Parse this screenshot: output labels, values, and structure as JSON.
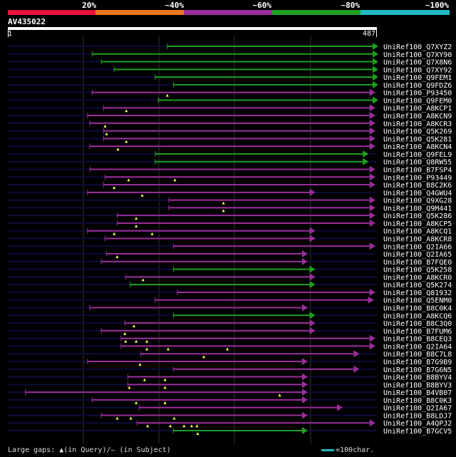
{
  "legend": {
    "labels": [
      "20%",
      "~40%",
      "~60%",
      "~80%",
      "~100%"
    ],
    "colors": [
      "#e8143c",
      "#e87820",
      "#9b2d9b",
      "#1ea01e",
      "#22b8c4"
    ]
  },
  "query": {
    "id": "AV435022",
    "start": "1",
    "end": "487",
    "length": 487
  },
  "footer": {
    "gaps_text": "Large gaps: ▲(in Query)/– (in Subject)",
    "scale_text": "=100char."
  },
  "colors": {
    "green": "#1ea01e",
    "purple": "#9b2d9b",
    "dark_line": "#0c0c3c",
    "guide": "#333333",
    "marker": "#ffff66"
  },
  "hits": [
    {
      "label": "UniRef100_Q7XYZ2",
      "start": 211,
      "end": 487,
      "color": "green",
      "markers": []
    },
    {
      "label": "UniRef100_Q7XY90",
      "start": 112,
      "end": 487,
      "color": "green",
      "markers": []
    },
    {
      "label": "UniRef100_Q7X8N6",
      "start": 124,
      "end": 487,
      "color": "green",
      "markers": []
    },
    {
      "label": "UniRef100_Q7XY92",
      "start": 141,
      "end": 487,
      "color": "green",
      "markers": []
    },
    {
      "label": "UniRef100_Q9FEM1",
      "start": 195,
      "end": 487,
      "color": "green",
      "markers": []
    },
    {
      "label": "UniRef100_Q9FDZ6",
      "start": 219,
      "end": 487,
      "color": "green",
      "markers": []
    },
    {
      "label": "UniRef100_P93450",
      "start": 112,
      "end": 483,
      "color": "purple",
      "markers": [
        211
      ]
    },
    {
      "label": "UniRef100_Q9FEM0",
      "start": 199,
      "end": 487,
      "color": "green",
      "markers": []
    },
    {
      "label": "UniRef100_A8KCP1",
      "start": 127,
      "end": 483,
      "color": "purple",
      "markers": [
        157
      ]
    },
    {
      "label": "UniRef100_A8KCN9",
      "start": 106,
      "end": 483,
      "color": "purple",
      "markers": []
    },
    {
      "label": "UniRef100_A8KCR3",
      "start": 109,
      "end": 483,
      "color": "purple",
      "markers": [
        129
      ]
    },
    {
      "label": "UniRef100_Q5K269",
      "start": 127,
      "end": 483,
      "color": "purple",
      "markers": [
        131
      ]
    },
    {
      "label": "UniRef100_Q5K281",
      "start": 127,
      "end": 483,
      "color": "purple",
      "markers": [
        157
      ]
    },
    {
      "label": "UniRef100_A8KCN4",
      "start": 109,
      "end": 483,
      "color": "purple",
      "markers": [
        146
      ]
    },
    {
      "label": "UniRef100_Q9FEL9",
      "start": 195,
      "end": 474,
      "color": "green",
      "markers": []
    },
    {
      "label": "UniRef100_Q8RW55",
      "start": 195,
      "end": 474,
      "color": "green",
      "markers": []
    },
    {
      "label": "UniRef100_B7FSP4",
      "start": 109,
      "end": 483,
      "color": "purple",
      "markers": []
    },
    {
      "label": "UniRef100_P93449",
      "start": 129,
      "end": 483,
      "color": "purple",
      "markers": [
        160,
        221
      ]
    },
    {
      "label": "UniRef100_B8C2K6",
      "start": 127,
      "end": 483,
      "color": "purple",
      "markers": [
        141
      ]
    },
    {
      "label": "UniRef100_Q4GWU4",
      "start": 106,
      "end": 404,
      "color": "purple",
      "markers": [
        178
      ]
    },
    {
      "label": "UniRef100_Q9XG28",
      "start": 213,
      "end": 483,
      "color": "purple",
      "markers": [
        285
      ]
    },
    {
      "label": "UniRef100_Q9M441",
      "start": 213,
      "end": 483,
      "color": "purple",
      "markers": [
        285
      ]
    },
    {
      "label": "UniRef100_Q5K286",
      "start": 145,
      "end": 483,
      "color": "purple",
      "markers": [
        170
      ]
    },
    {
      "label": "UniRef100_A8KCP5",
      "start": 145,
      "end": 483,
      "color": "purple",
      "markers": [
        170
      ]
    },
    {
      "label": "UniRef100_A8KCQ1",
      "start": 106,
      "end": 404,
      "color": "purple",
      "markers": [
        141,
        191
      ]
    },
    {
      "label": "UniRef100_A8KCR8",
      "start": 129,
      "end": 404,
      "color": "purple",
      "markers": []
    },
    {
      "label": "UniRef100_Q2IA66",
      "start": 219,
      "end": 483,
      "color": "purple",
      "markers": []
    },
    {
      "label": "UniRef100_Q2IA65",
      "start": 131,
      "end": 394,
      "color": "purple",
      "markers": [
        145
      ]
    },
    {
      "label": "UniRef100_B7FQE0",
      "start": 124,
      "end": 394,
      "color": "purple",
      "markers": []
    },
    {
      "label": "UniRef100_Q5K258",
      "start": 219,
      "end": 404,
      "color": "green",
      "markers": []
    },
    {
      "label": "UniRef100_A8KCR0",
      "start": 156,
      "end": 404,
      "color": "purple",
      "markers": [
        179
      ]
    },
    {
      "label": "UniRef100_Q5K274",
      "start": 162,
      "end": 404,
      "color": "green",
      "markers": []
    },
    {
      "label": "UniRef100_Q81932",
      "start": 224,
      "end": 483,
      "color": "purple",
      "markers": []
    },
    {
      "label": "UniRef100_Q5ENM0",
      "start": 195,
      "end": 481,
      "color": "purple",
      "markers": []
    },
    {
      "label": "UniRef100_B8C0K4",
      "start": 109,
      "end": 394,
      "color": "purple",
      "markers": []
    },
    {
      "label": "UniRef100_A8KCQ6",
      "start": 219,
      "end": 404,
      "color": "green",
      "markers": []
    },
    {
      "label": "UniRef100_B8C3Q0",
      "start": 155,
      "end": 404,
      "color": "purple",
      "markers": [
        167
      ]
    },
    {
      "label": "UniRef100_B7FUM6",
      "start": 124,
      "end": 404,
      "color": "purple",
      "markers": [
        155
      ]
    },
    {
      "label": "UniRef100_B8CEQ3",
      "start": 150,
      "end": 483,
      "color": "purple",
      "markers": [
        156,
        170,
        184
      ]
    },
    {
      "label": "UniRef100_Q2IA64",
      "start": 150,
      "end": 483,
      "color": "purple",
      "markers": [
        184,
        212,
        290
      ]
    },
    {
      "label": "UniRef100_B8C7L8",
      "start": 176,
      "end": 462,
      "color": "purple",
      "markers": [
        259
      ]
    },
    {
      "label": "UniRef100_B7G9B9",
      "start": 106,
      "end": 394,
      "color": "purple",
      "markers": [
        175
      ]
    },
    {
      "label": "UniRef100_B7G6N5",
      "start": 219,
      "end": 462,
      "color": "purple",
      "markers": []
    },
    {
      "label": "UniRef100_B8BYV4",
      "start": 159,
      "end": 394,
      "color": "purple",
      "markers": [
        181,
        208
      ]
    },
    {
      "label": "UniRef100_B8BYV3",
      "start": 159,
      "end": 394,
      "color": "purple",
      "markers": [
        161,
        208
      ]
    },
    {
      "label": "UniRef100_B4VB07",
      "start": 24,
      "end": 394,
      "color": "purple",
      "markers": [
        359
      ]
    },
    {
      "label": "UniRef100_B8C0K3",
      "start": 112,
      "end": 394,
      "color": "purple",
      "markers": [
        170,
        208
      ]
    },
    {
      "label": "UniRef100_Q2IA67",
      "start": 174,
      "end": 440,
      "color": "purple",
      "markers": []
    },
    {
      "label": "UniRef100_B8LDJ7",
      "start": 124,
      "end": 394,
      "color": "purple",
      "markers": [
        145,
        163,
        220
      ]
    },
    {
      "label": "UniRef100_A4QPJ2",
      "start": 171,
      "end": 483,
      "color": "purple",
      "markers": [
        185,
        215,
        233,
        243,
        250
      ]
    },
    {
      "label": "UniRef100_B7GCV5",
      "start": 219,
      "end": 394,
      "color": "green",
      "markers": [
        251
      ]
    }
  ]
}
